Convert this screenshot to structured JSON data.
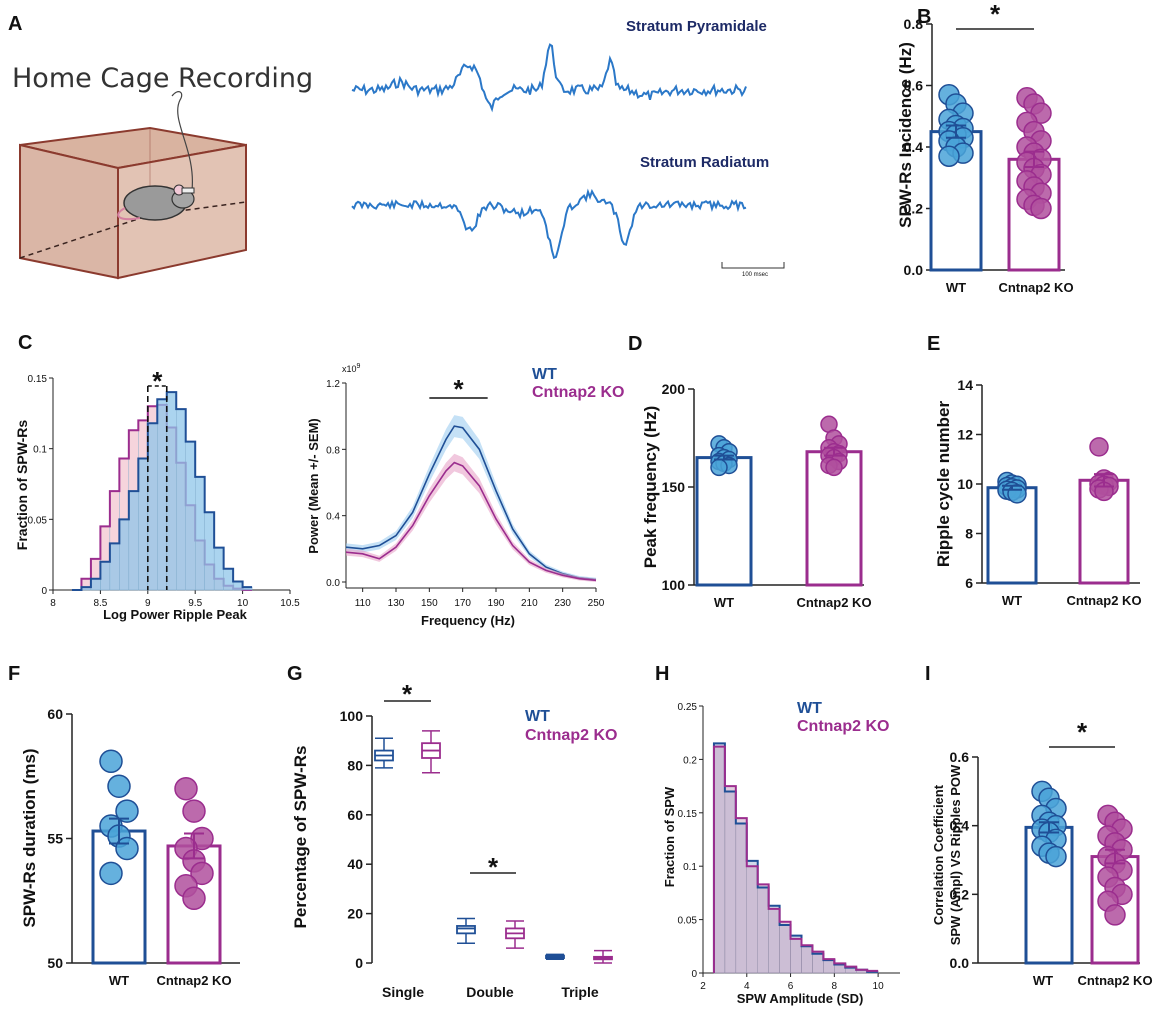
{
  "colors": {
    "wt": "#1f4f96",
    "wt_fill": "#4aa3d8",
    "ko": "#9b2d8e",
    "ko_fill": "#b0509e",
    "trace": "#2b78c8"
  },
  "panels": {
    "A": {
      "letter": "A",
      "cage_title": "Home Cage Recording",
      "trace1_label": "Stratum Pyramidale",
      "trace2_label": "Stratum Radiatum",
      "scale_bar": "100 msec"
    },
    "B": {
      "letter": "B",
      "ylabel": "SPW-Rs Incidence (Hz)",
      "yticks": [
        "0.0",
        "0.2",
        "0.4",
        "0.6",
        "0.8"
      ],
      "categories": [
        "WT",
        "Cntnap2 KO"
      ],
      "sig": "*"
    },
    "C": {
      "letter": "C",
      "hist_ylabel": "Fraction of SPW-Rs",
      "hist_xlabel": "Log Power Ripple Peak",
      "hist_yticks": [
        "0",
        "0.05",
        "0.1",
        "0.15"
      ],
      "hist_xticks": [
        "8",
        "8.5",
        "9",
        "9.5",
        "10",
        "10.5"
      ],
      "sig": "*",
      "spec_ylabel": "Power (Mean +/- SEM)",
      "spec_xlabel": "Frequency (Hz)",
      "spec_exp": "x10",
      "spec_exp_sup": "9",
      "spec_yticks": [
        "0.0",
        "0.4",
        "0.8",
        "1.2"
      ],
      "spec_xticks": [
        "110",
        "130",
        "150",
        "170",
        "190",
        "210",
        "230",
        "250"
      ],
      "legend": [
        "WT",
        "Cntnap2 KO"
      ]
    },
    "D": {
      "letter": "D",
      "ylabel": "Peak  frequency (Hz)",
      "yticks": [
        "100",
        "150",
        "200"
      ],
      "categories": [
        "WT",
        "Cntnap2 KO"
      ]
    },
    "E": {
      "letter": "E",
      "ylabel": "Ripple cycle number",
      "yticks": [
        "6",
        "8",
        "10",
        "12",
        "14"
      ],
      "categories": [
        "WT",
        "Cntnap2 KO"
      ]
    },
    "F": {
      "letter": "F",
      "ylabel": "SPW-Rs duration (ms)",
      "yticks": [
        "50",
        "55",
        "60"
      ],
      "categories": [
        "WT",
        "Cntnap2 KO"
      ]
    },
    "G": {
      "letter": "G",
      "ylabel": "Percentage of SPW-Rs",
      "yticks": [
        "0",
        "20",
        "40",
        "60",
        "80",
        "100"
      ],
      "categories": [
        "Single",
        "Double",
        "Triple"
      ],
      "legend": [
        "WT",
        "Cntnap2 KO"
      ],
      "sig1": "*",
      "sig2": "*"
    },
    "H": {
      "letter": "H",
      "ylabel": "Fraction of SPW",
      "xlabel": "SPW Amplitude (SD)",
      "yticks": [
        "0",
        "0.05",
        "0.1",
        "0.15",
        "0.2",
        "0.25"
      ],
      "xticks": [
        "2",
        "4",
        "6",
        "8",
        "10"
      ],
      "legend": [
        "WT",
        "Cntnap2 KO"
      ]
    },
    "I": {
      "letter": "I",
      "ylabel1": "Correlation  Coefficient",
      "ylabel2": "SPW (Ampl) VS Ripples POW",
      "yticks": [
        "0.0",
        "0.2",
        "0.4",
        "0.6"
      ],
      "categories": [
        "WT",
        "Cntnap2 KO"
      ],
      "sig": "*"
    }
  },
  "chart_data": [
    {
      "panel": "B",
      "type": "bar",
      "ylabel": "SPW-Rs Incidence (Hz)",
      "ylim": [
        0,
        0.8
      ],
      "categories": [
        "WT",
        "Cntnap2 KO"
      ],
      "values": [
        0.45,
        0.36
      ],
      "sem": [
        0.02,
        0.025
      ],
      "points": [
        [
          0.57,
          0.54,
          0.51,
          0.49,
          0.47,
          0.46,
          0.45,
          0.44,
          0.43,
          0.42,
          0.4,
          0.38,
          0.37
        ],
        [
          0.56,
          0.54,
          0.51,
          0.48,
          0.45,
          0.42,
          0.4,
          0.38,
          0.36,
          0.35,
          0.33,
          0.31,
          0.29,
          0.27,
          0.25,
          0.23,
          0.21,
          0.2
        ]
      ]
    },
    {
      "panel": "C-hist",
      "type": "bar",
      "xlabel": "Log Power Ripple Peak",
      "ylabel": "Fraction of SPW-Rs",
      "xlim": [
        8,
        10.5
      ],
      "ylim": [
        0,
        0.15
      ],
      "bin_edges": [
        8.2,
        8.3,
        8.4,
        8.5,
        8.6,
        8.7,
        8.8,
        8.9,
        9.0,
        9.1,
        9.2,
        9.3,
        9.4,
        9.5,
        9.6,
        9.7,
        9.8,
        9.9,
        10.0,
        10.1
      ],
      "series": [
        {
          "name": "WT",
          "values": [
            0,
            0.002,
            0.008,
            0.02,
            0.033,
            0.05,
            0.07,
            0.093,
            0.118,
            0.135,
            0.14,
            0.128,
            0.105,
            0.08,
            0.055,
            0.03,
            0.015,
            0.006,
            0.002
          ]
        },
        {
          "name": "Cntnap2 KO",
          "values": [
            0,
            0.008,
            0.022,
            0.045,
            0.07,
            0.093,
            0.113,
            0.12,
            0.13,
            0.131,
            0.115,
            0.09,
            0.06,
            0.035,
            0.018,
            0.008,
            0.003,
            0.001,
            0
          ]
        }
      ],
      "medians": [
        9.2,
        9.0
      ]
    },
    {
      "panel": "C-spectrum",
      "type": "line",
      "xlabel": "Frequency (Hz)",
      "ylabel": "Power (Mean +/- SEM)",
      "xlim": [
        100,
        250
      ],
      "ylim": [
        0,
        1.2
      ],
      "x": [
        100,
        110,
        120,
        130,
        140,
        150,
        160,
        165,
        170,
        180,
        190,
        200,
        210,
        220,
        230,
        240,
        250
      ],
      "series": [
        {
          "name": "WT",
          "values": [
            0.21,
            0.2,
            0.22,
            0.28,
            0.42,
            0.65,
            0.86,
            0.94,
            0.93,
            0.8,
            0.55,
            0.32,
            0.17,
            0.09,
            0.05,
            0.025,
            0.015
          ]
        },
        {
          "name": "Cntnap2 KO",
          "values": [
            0.18,
            0.17,
            0.14,
            0.21,
            0.34,
            0.52,
            0.67,
            0.72,
            0.7,
            0.58,
            0.38,
            0.22,
            0.12,
            0.07,
            0.04,
            0.02,
            0.01
          ]
        }
      ],
      "significance_range": [
        150,
        185
      ]
    },
    {
      "panel": "D",
      "type": "bar",
      "ylabel": "Peak  frequency (Hz)",
      "ylim": [
        100,
        200
      ],
      "categories": [
        "WT",
        "Cntnap2 KO"
      ],
      "values": [
        165,
        168
      ],
      "sem": [
        1,
        2
      ],
      "points": [
        [
          172,
          170,
          168,
          166,
          165,
          164,
          163,
          162,
          161,
          160
        ],
        [
          182,
          175,
          172,
          170,
          168,
          167,
          166,
          165,
          163,
          161,
          160
        ]
      ]
    },
    {
      "panel": "E",
      "type": "bar",
      "ylabel": "Ripple cycle number",
      "ylim": [
        6,
        14
      ],
      "categories": [
        "WT",
        "Cntnap2 KO"
      ],
      "values": [
        9.85,
        10.15
      ],
      "sem": [
        0.08,
        0.25
      ],
      "points": [
        [
          10.1,
          10.0,
          9.95,
          9.9,
          9.85,
          9.8,
          9.75,
          9.7,
          9.6
        ],
        [
          11.5,
          10.2,
          10.1,
          10.0,
          9.95,
          9.9,
          9.8,
          9.7
        ]
      ]
    },
    {
      "panel": "F",
      "type": "bar",
      "ylabel": "SPW-Rs duration (ms)",
      "ylim": [
        50,
        60
      ],
      "categories": [
        "WT",
        "Cntnap2 KO"
      ],
      "values": [
        55.3,
        54.7
      ],
      "sem": [
        0.5,
        0.5
      ],
      "points": [
        [
          58.1,
          57.1,
          56.1,
          55.5,
          55.1,
          54.6,
          53.6
        ],
        [
          57.0,
          56.1,
          55.0,
          54.6,
          54.1,
          53.6,
          53.1,
          52.6
        ]
      ]
    },
    {
      "panel": "G",
      "type": "box",
      "ylabel": "Percentage of SPW-Rs",
      "ylim": [
        0,
        100
      ],
      "categories": [
        "Single",
        "Double",
        "Triple"
      ],
      "series": [
        {
          "name": "WT",
          "boxes": [
            {
              "min": 79,
              "q1": 82,
              "median": 84,
              "q3": 86,
              "max": 91
            },
            {
              "min": 8,
              "q1": 12,
              "median": 14,
              "q3": 15,
              "max": 18
            },
            {
              "min": 1.5,
              "q1": 2,
              "median": 2.5,
              "q3": 3,
              "max": 3.5
            }
          ]
        },
        {
          "name": "Cntnap2 KO",
          "boxes": [
            {
              "min": 77,
              "q1": 83,
              "median": 86,
              "q3": 89,
              "max": 94
            },
            {
              "min": 6,
              "q1": 10,
              "median": 12,
              "q3": 14,
              "max": 17
            },
            {
              "min": 0,
              "q1": 1.5,
              "median": 2,
              "q3": 2.5,
              "max": 5
            }
          ]
        }
      ]
    },
    {
      "panel": "H",
      "type": "bar",
      "xlabel": "SPW Amplitude (SD)",
      "ylabel": "Fraction of SPW",
      "xlim": [
        2,
        11
      ],
      "ylim": [
        0,
        0.25
      ],
      "bin_edges": [
        2.5,
        3.0,
        3.5,
        4.0,
        4.5,
        5.0,
        5.5,
        6.0,
        6.5,
        7.0,
        7.5,
        8.0,
        8.5,
        9.0,
        9.5,
        10.0
      ],
      "series": [
        {
          "name": "WT",
          "values": [
            0.215,
            0.17,
            0.14,
            0.105,
            0.08,
            0.063,
            0.045,
            0.035,
            0.025,
            0.018,
            0.012,
            0.008,
            0.005,
            0.003,
            0.001
          ]
        },
        {
          "name": "Cntnap2 KO",
          "values": [
            0.212,
            0.175,
            0.145,
            0.1,
            0.083,
            0.06,
            0.048,
            0.032,
            0.026,
            0.02,
            0.013,
            0.009,
            0.006,
            0.003,
            0.002
          ]
        }
      ]
    },
    {
      "panel": "I",
      "type": "bar",
      "ylabel": "SPW (Ampl) VS Ripples POW",
      "ylim": [
        0,
        0.6
      ],
      "categories": [
        "WT",
        "Cntnap2 KO"
      ],
      "values": [
        0.395,
        0.31
      ],
      "sem": [
        0.015,
        0.02
      ],
      "points": [
        [
          0.5,
          0.48,
          0.45,
          0.43,
          0.41,
          0.4,
          0.39,
          0.38,
          0.36,
          0.34,
          0.32,
          0.31
        ],
        [
          0.43,
          0.41,
          0.39,
          0.37,
          0.35,
          0.33,
          0.31,
          0.29,
          0.27,
          0.25,
          0.22,
          0.2,
          0.18,
          0.14
        ]
      ]
    }
  ]
}
